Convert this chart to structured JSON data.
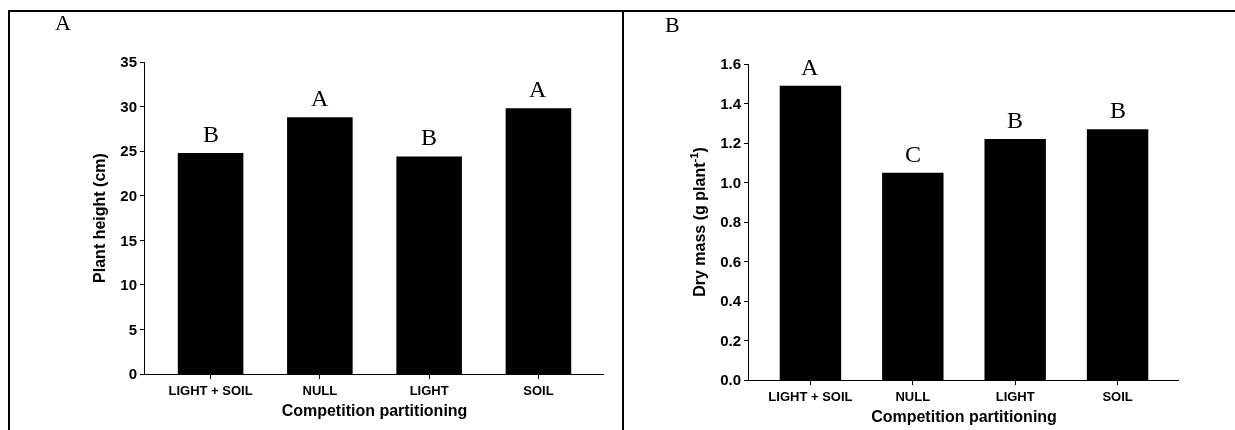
{
  "chart_data": [
    {
      "type": "bar",
      "title": "A",
      "xlabel": "Competition partitioning",
      "ylabel": "Plant height (cm)",
      "categories": [
        "LIGHT + SOIL",
        "NULL",
        "LIGHT",
        "SOIL"
      ],
      "values": [
        24.8,
        28.8,
        24.4,
        29.8
      ],
      "color": "#000000",
      "ylim": [
        0,
        35
      ],
      "yticks": [
        0,
        5,
        10,
        15,
        20,
        25,
        30,
        35
      ],
      "grid": false,
      "legend": false,
      "annotations": [
        {
          "text": "B",
          "x": "LIGHT + SOIL",
          "y": 24.8
        },
        {
          "text": "A",
          "x": "NULL",
          "y": 28.8
        },
        {
          "text": "B",
          "x": "LIGHT",
          "y": 24.4
        },
        {
          "text": "A",
          "x": "SOIL",
          "y": 29.8
        }
      ]
    },
    {
      "type": "bar",
      "title": "B",
      "xlabel": "Competition partitioning",
      "ylabel": "Dry mass (g plant$^{-1}$)",
      "categories": [
        "LIGHT + SOIL",
        "NULL",
        "LIGHT",
        "SOIL"
      ],
      "values": [
        1.49,
        1.05,
        1.22,
        1.27
      ],
      "color": "#000000",
      "ylim": [
        0,
        1.6
      ],
      "yticks": [
        {
          "value": 0,
          "label": "0.0"
        },
        0.2,
        0.4,
        0.6,
        0.8,
        {
          "value": 1,
          "label": "1.0"
        },
        1.2,
        1.4,
        1.6
      ],
      "grid": false,
      "legend": false,
      "annotations": [
        {
          "text": "A",
          "x": "LIGHT + SOIL",
          "y": 1.49
        },
        {
          "text": "C",
          "x": "NULL",
          "y": 1.05
        },
        {
          "text": "B",
          "x": "LIGHT",
          "y": 1.22
        },
        {
          "text": "B",
          "x": "SOIL",
          "y": 1.27
        }
      ]
    }
  ]
}
